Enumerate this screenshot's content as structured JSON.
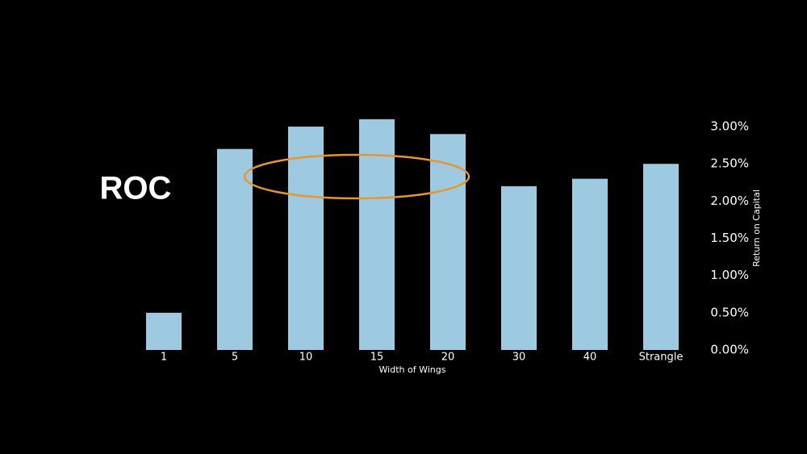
{
  "chart_data": {
    "type": "bar",
    "title": "ROC",
    "categories": [
      "1",
      "5",
      "10",
      "15",
      "20",
      "30",
      "40",
      "Strangle"
    ],
    "values": [
      0.5,
      2.7,
      3.0,
      3.1,
      2.9,
      2.2,
      2.3,
      2.5
    ],
    "color": "#9ecae1",
    "x_label": "Width of Wings",
    "y_label": "Return on Capital",
    "ylim": [
      0,
      3.1
    ],
    "yticks": [
      {
        "value": 0,
        "label": "0.00%"
      },
      {
        "value": 0.5,
        "label": "0.50%"
      },
      {
        "value": 1,
        "label": "1.00%"
      },
      {
        "value": 1.5,
        "label": "1.50%"
      },
      {
        "value": 2,
        "label": "2.00%"
      },
      {
        "value": 2.5,
        "label": "2.50%"
      },
      {
        "value": 3,
        "label": "3.00%"
      }
    ],
    "grid": false
  }
}
